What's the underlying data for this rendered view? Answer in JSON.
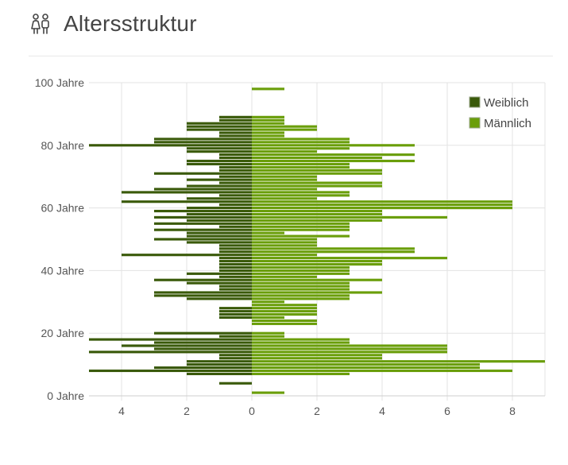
{
  "header": {
    "title": "Altersstruktur",
    "icon": "family-icon"
  },
  "colors": {
    "weiblich": "#3a5a0a",
    "maennlich": "#6a9e0a",
    "grid": "#e3e3e3",
    "axis": "#cfcfcf"
  },
  "chart_data": {
    "type": "bar",
    "orientation": "horizontal-pyramid",
    "title": "",
    "xlim": [
      -5,
      9
    ],
    "ylim": [
      0,
      100
    ],
    "x_ticks": [
      {
        "value": -4,
        "label": "4"
      },
      {
        "value": -2,
        "label": "2"
      },
      {
        "value": 0,
        "label": "0"
      },
      {
        "value": 2,
        "label": "2"
      },
      {
        "value": 4,
        "label": "4"
      },
      {
        "value": 6,
        "label": "6"
      },
      {
        "value": 8,
        "label": "8"
      }
    ],
    "y_ticks": [
      {
        "value": 0,
        "label": "0 Jahre"
      },
      {
        "value": 20,
        "label": "20 Jahre"
      },
      {
        "value": 40,
        "label": "40 Jahre"
      },
      {
        "value": 60,
        "label": "60 Jahre"
      },
      {
        "value": 80,
        "label": "80 Jahre"
      },
      {
        "value": 100,
        "label": "100 Jahre"
      }
    ],
    "legend": {
      "position": "top-right",
      "entries": [
        "Weiblich",
        "Männlich"
      ]
    },
    "grid": true,
    "ages": [
      1,
      2,
      3,
      4,
      5,
      6,
      7,
      8,
      9,
      10,
      11,
      12,
      13,
      14,
      15,
      16,
      17,
      18,
      19,
      20,
      21,
      22,
      23,
      24,
      25,
      26,
      27,
      28,
      29,
      30,
      31,
      32,
      33,
      34,
      35,
      36,
      37,
      38,
      39,
      40,
      41,
      42,
      43,
      44,
      45,
      46,
      47,
      48,
      49,
      50,
      51,
      52,
      53,
      54,
      55,
      56,
      57,
      58,
      59,
      60,
      61,
      62,
      63,
      64,
      65,
      66,
      67,
      68,
      69,
      70,
      71,
      72,
      73,
      74,
      75,
      76,
      77,
      78,
      79,
      80,
      81,
      82,
      83,
      84,
      85,
      86,
      87,
      88,
      89,
      98
    ],
    "series": [
      {
        "name": "Weiblich",
        "values": [
          0,
          0,
          0,
          1,
          0,
          0,
          2,
          5,
          3,
          2,
          2,
          1,
          1,
          5,
          3,
          4,
          3,
          5,
          1,
          3,
          0,
          0,
          0,
          0,
          1,
          1,
          1,
          1,
          0,
          0,
          2,
          3,
          3,
          1,
          1,
          2,
          3,
          1,
          2,
          1,
          1,
          1,
          1,
          1,
          4,
          1,
          1,
          1,
          2,
          3,
          2,
          2,
          3,
          1,
          3,
          2,
          3,
          2,
          3,
          2,
          1,
          4,
          2,
          1,
          4,
          3,
          2,
          1,
          2,
          1,
          3,
          1,
          1,
          2,
          2,
          1,
          1,
          2,
          2,
          5,
          3,
          3,
          1,
          1,
          2,
          2,
          2,
          1,
          1,
          0
        ],
        "color_key": "weiblich"
      },
      {
        "name": "Männlich",
        "values": [
          1,
          0,
          0,
          0,
          0,
          0,
          3,
          8,
          7,
          7,
          9,
          4,
          4,
          6,
          6,
          6,
          3,
          3,
          1,
          1,
          0,
          0,
          2,
          2,
          1,
          2,
          2,
          2,
          2,
          1,
          3,
          3,
          4,
          3,
          3,
          3,
          4,
          2,
          3,
          3,
          3,
          4,
          4,
          6,
          2,
          5,
          5,
          2,
          2,
          2,
          3,
          1,
          3,
          3,
          3,
          4,
          6,
          4,
          4,
          8,
          8,
          8,
          2,
          3,
          3,
          2,
          4,
          4,
          2,
          2,
          4,
          4,
          3,
          3,
          5,
          4,
          5,
          2,
          3,
          5,
          3,
          3,
          1,
          1,
          2,
          2,
          1,
          1,
          1,
          1
        ],
        "color_key": "maennlich"
      }
    ]
  }
}
